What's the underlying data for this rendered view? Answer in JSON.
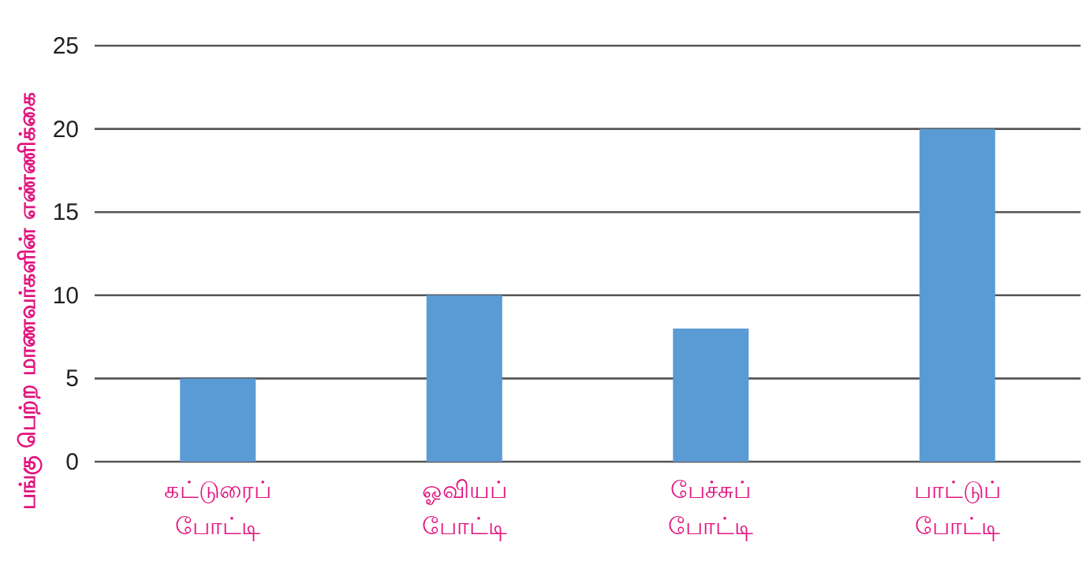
{
  "chart_data": {
    "type": "bar",
    "ylabel": "பங்கு பெற்ற மாணவர்களின் எண்ணிக்கை",
    "categories": [
      "கட்டுரைப் போட்டி",
      "ஓவியப் போட்டி",
      "பேச்சுப் போட்டி",
      "பாட்டுப் போட்டி"
    ],
    "values": [
      5,
      10,
      8,
      20
    ],
    "color": "#5b9bd5",
    "ylim": [
      0,
      25
    ],
    "yticks": [
      0,
      5,
      10,
      15,
      20,
      25
    ],
    "grid": "y"
  }
}
